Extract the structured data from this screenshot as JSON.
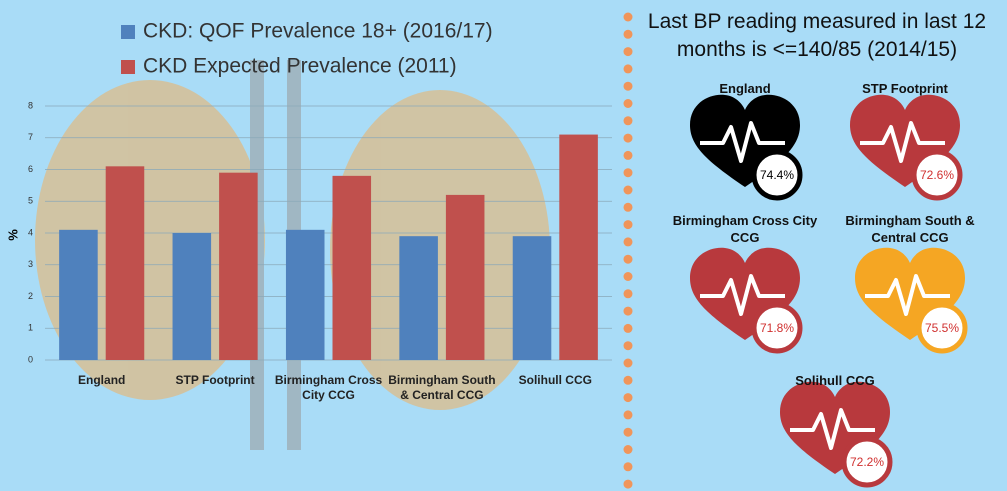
{
  "chart_data": [
    {
      "type": "bar",
      "ylabel": "%",
      "categories": [
        "England",
        "STP Footprint",
        "Birmingham Cross City CCG",
        "Birmingham South & Central CCG",
        "Solihull CCG"
      ],
      "series": [
        {
          "name": "CKD: QOF Prevalence 18+ (2016/17)",
          "color": "#4f81bd",
          "values": [
            4.1,
            4.0,
            4.1,
            3.9,
            3.9
          ]
        },
        {
          "name": "CKD Expected Prevalence (2011)",
          "color": "#c0504d",
          "values": [
            6.1,
            5.9,
            5.8,
            5.2,
            7.1
          ]
        }
      ],
      "ylim": [
        0,
        8
      ],
      "yticks": [
        0,
        1,
        2,
        3,
        4,
        5,
        6,
        7,
        8
      ],
      "grid": true
    },
    {
      "type": "pictogram",
      "title": "Last BP reading measured in last 12 months is <=140/85 (2014/15)",
      "categories": [
        "England",
        "STP Footprint",
        "Birmingham Cross City CCG",
        "Birmingham South & Central CCG",
        "Solihull CCG"
      ],
      "values": [
        74.4,
        72.6,
        71.8,
        75.5,
        72.2
      ],
      "value_labels": [
        "74.4%",
        "72.6%",
        "71.8%",
        "75.5%",
        "72.2%"
      ],
      "colors": [
        "#000000",
        "#b8393d",
        "#b8393d",
        "#f5a623",
        "#b8393d"
      ]
    }
  ]
}
